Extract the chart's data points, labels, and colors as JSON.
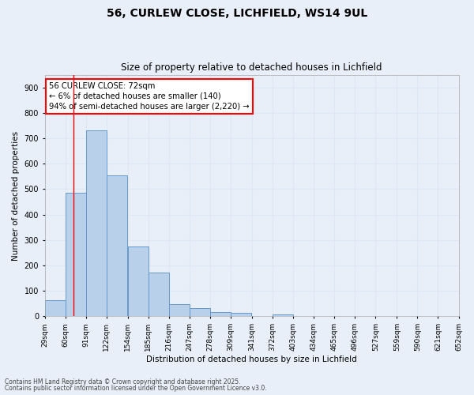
{
  "title1": "56, CURLEW CLOSE, LICHFIELD, WS14 9UL",
  "title2": "Size of property relative to detached houses in Lichfield",
  "xlabel": "Distribution of detached houses by size in Lichfield",
  "ylabel": "Number of detached properties",
  "bar_left_edges": [
    29,
    60,
    91,
    122,
    154,
    185,
    216,
    247,
    278,
    309,
    341,
    372,
    403,
    434,
    465,
    496,
    527,
    559,
    590,
    621
  ],
  "bar_heights": [
    62,
    485,
    730,
    553,
    275,
    173,
    48,
    33,
    16,
    13,
    0,
    8,
    0,
    0,
    0,
    0,
    0,
    0,
    0,
    0
  ],
  "bin_width": 31,
  "bar_color": "#b8d0ea",
  "bar_edge_color": "#6699cc",
  "bar_linewidth": 0.7,
  "tick_labels": [
    "29sqm",
    "60sqm",
    "91sqm",
    "122sqm",
    "154sqm",
    "185sqm",
    "216sqm",
    "247sqm",
    "278sqm",
    "309sqm",
    "341sqm",
    "372sqm",
    "403sqm",
    "434sqm",
    "465sqm",
    "496sqm",
    "527sqm",
    "559sqm",
    "590sqm",
    "621sqm",
    "652sqm"
  ],
  "red_line_x": 72,
  "ylim": [
    0,
    950
  ],
  "yticks": [
    0,
    100,
    200,
    300,
    400,
    500,
    600,
    700,
    800,
    900
  ],
  "annotation_text": "56 CURLEW CLOSE: 72sqm\n← 6% of detached houses are smaller (140)\n94% of semi-detached houses are larger (2,220) →",
  "grid_color": "#dce8f5",
  "background_color": "#e8eff8",
  "plot_bg_color": "#e8eff8",
  "footer1": "Contains HM Land Registry data © Crown copyright and database right 2025.",
  "footer2": "Contains public sector information licensed under the Open Government Licence v3.0."
}
